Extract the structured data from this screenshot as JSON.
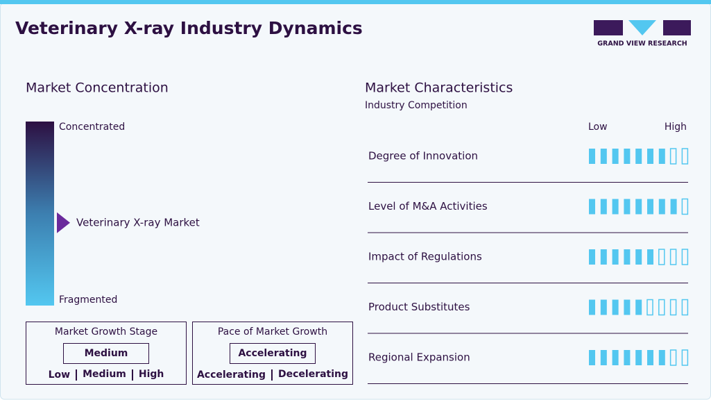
{
  "header": {
    "title": "Veterinary X-ray Industry Dynamics",
    "logo_text": "GRAND VIEW RESEARCH"
  },
  "concentration": {
    "heading": "Market Concentration",
    "top_label": "Concentrated",
    "bottom_label": "Fragmented",
    "market_label": "Veterinary X-ray Market",
    "level": 0.45
  },
  "growth_stage": {
    "heading": "Market Growth Stage",
    "selected": "Medium",
    "options": [
      "Low",
      "Medium",
      "High"
    ]
  },
  "pace": {
    "heading": "Pace of Market Growth",
    "selected": "Accelerating",
    "options": [
      "Accelerating",
      "Decelerating"
    ]
  },
  "characteristics": {
    "heading": "Market Characteristics",
    "subheading": "Industry Competition",
    "low_label": "Low",
    "high_label": "High",
    "scale_max": 9,
    "rows": [
      {
        "label": "Degree of Innovation",
        "rating": 7
      },
      {
        "label": "Level of M&A Activities",
        "rating": 8
      },
      {
        "label": "Impact of Regulations",
        "rating": 6
      },
      {
        "label": "Product Substitutes",
        "rating": 5
      },
      {
        "label": "Regional Expansion",
        "rating": 7
      }
    ]
  }
}
